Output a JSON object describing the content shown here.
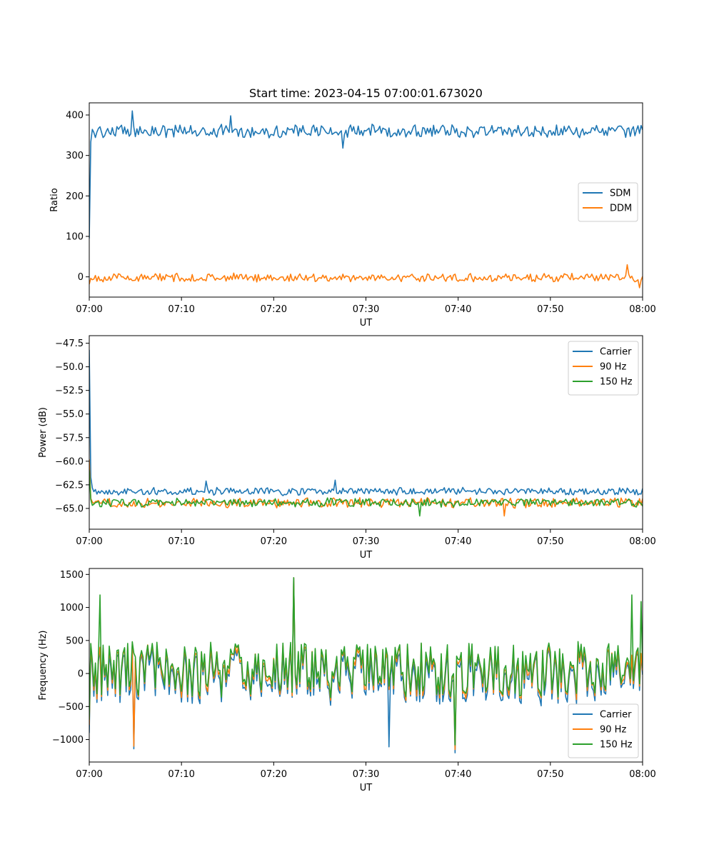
{
  "figure_title": "Start time: 2023-04-15 07:00:01.673020",
  "colors": {
    "blue": "#1f77b4",
    "orange": "#ff7f0e",
    "green": "#2ca02c"
  },
  "chart_data": [
    {
      "type": "line",
      "xlabel": "UT",
      "ylabel": "Ratio",
      "x_range": [
        "07:00",
        "08:00"
      ],
      "xticks": [
        "07:00",
        "07:10",
        "07:20",
        "07:30",
        "07:40",
        "07:50",
        "08:00"
      ],
      "yticks": [
        "0",
        "100",
        "200",
        "300",
        "400"
      ],
      "ylim": [
        -50,
        430
      ],
      "legend_placement": "center-right",
      "series": [
        {
          "name": "SDM",
          "color": "#1f77b4",
          "mean": 360,
          "noise": 14,
          "start_value": 95,
          "spikes": [
            [
              4.6,
              410
            ],
            [
              15.4,
              398
            ],
            [
              27.5,
              318
            ]
          ]
        },
        {
          "name": "DDM",
          "color": "#ff7f0e",
          "mean": -2,
          "noise": 9,
          "start_value": -18,
          "spikes": [
            [
              58.3,
              30
            ],
            [
              59.6,
              -27
            ]
          ]
        }
      ]
    },
    {
      "type": "line",
      "xlabel": "UT",
      "ylabel": "Power (dB)",
      "x_range": [
        "07:00",
        "08:00"
      ],
      "xticks": [
        "07:00",
        "07:10",
        "07:20",
        "07:30",
        "07:40",
        "07:50",
        "08:00"
      ],
      "yticks": [
        "−47.5",
        "−50.0",
        "−52.5",
        "−55.0",
        "−57.5",
        "−60.0",
        "−62.5",
        "−65.0"
      ],
      "ylim": [
        -67.2,
        -46.7
      ],
      "legend_placement": "top-right",
      "series": [
        {
          "name": "Carrier",
          "color": "#1f77b4",
          "mean": -63.2,
          "noise": 0.35,
          "start_value": -48.2,
          "spikes": [
            [
              26.7,
              -62.0
            ],
            [
              12.6,
              -62.1
            ]
          ]
        },
        {
          "name": "90 Hz",
          "color": "#ff7f0e",
          "mean": -64.4,
          "noise": 0.45,
          "start_value": -59.8,
          "spikes": [
            [
              45.0,
              -65.8
            ]
          ]
        },
        {
          "name": "150 Hz",
          "color": "#2ca02c",
          "mean": -64.4,
          "noise": 0.4,
          "start_value": -60.9,
          "spikes": [
            [
              35.8,
              -65.8
            ]
          ]
        }
      ]
    },
    {
      "type": "line",
      "xlabel": "UT",
      "ylabel": "Frequency (Hz)",
      "x_range": [
        "07:00",
        "08:00"
      ],
      "xticks": [
        "07:00",
        "07:10",
        "07:20",
        "07:30",
        "07:40",
        "07:50",
        "08:00"
      ],
      "yticks": [
        "−1000",
        "−500",
        "0",
        "500",
        "1000",
        "1500"
      ],
      "ylim": [
        -1340,
        1590
      ],
      "legend_placement": "lower-right",
      "series": [
        {
          "name": "Carrier",
          "color": "#1f77b4",
          "mean": -40,
          "noise": 330,
          "start_value": -900,
          "spikes": [
            [
              4.9,
              -1140
            ],
            [
              22.1,
              1450
            ],
            [
              39.6,
              -1200
            ],
            [
              32.5,
              -1110
            ]
          ]
        },
        {
          "name": "90 Hz",
          "color": "#ff7f0e",
          "mean": 20,
          "noise": 320,
          "start_value": -780,
          "spikes": [
            [
              4.9,
              -1100
            ],
            [
              22.1,
              1450
            ],
            [
              39.6,
              -1150
            ]
          ]
        },
        {
          "name": "150 Hz",
          "color": "#2ca02c",
          "mean": 60,
          "noise": 320,
          "start_value": -700,
          "spikes": [
            [
              1.1,
              1190
            ],
            [
              22.1,
              1450
            ],
            [
              39.6,
              -1080
            ],
            [
              58.9,
              1190
            ],
            [
              59.8,
              1090
            ]
          ]
        }
      ]
    }
  ]
}
